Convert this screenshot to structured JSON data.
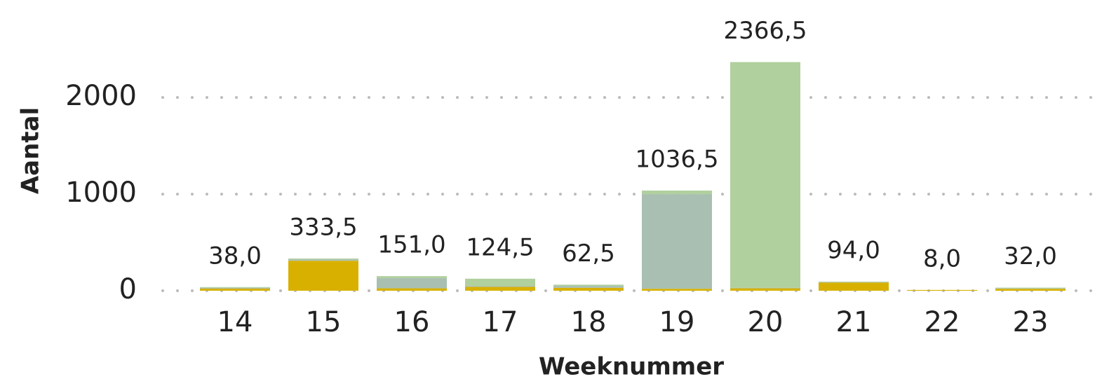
{
  "chart_data": {
    "type": "stacked_bar",
    "categories": [
      "14",
      "15",
      "16",
      "17",
      "18",
      "19",
      "20",
      "21",
      "22",
      "23"
    ],
    "series": [
      {
        "color": "#d8b100",
        "values": [
          22,
          310,
          25,
          40,
          30,
          20,
          25,
          85,
          8,
          20
        ]
      },
      {
        "color": "#a8bfb1",
        "values": [
          8,
          15,
          105,
          10,
          20,
          980,
          5,
          5,
          0,
          5
        ]
      },
      {
        "color": "#b0d09e",
        "values": [
          8,
          8.5,
          21,
          74.5,
          12.5,
          36.5,
          2336.5,
          4,
          0,
          7
        ]
      }
    ],
    "totals": [
      38,
      333.5,
      151,
      124.5,
      62.5,
      1036.5,
      2366.5,
      94,
      8,
      32
    ],
    "total_labels": [
      "38,0",
      "333,5",
      "151,0",
      "124,5",
      "62,5",
      "1036,5",
      "2366,5",
      "94,0",
      "8,0",
      "32,0"
    ],
    "xlabel": "Weeknummer",
    "ylabel": "Aantal",
    "ylim": [
      0,
      2400
    ],
    "yticks": [
      0,
      1000,
      2000
    ],
    "grid": true
  }
}
